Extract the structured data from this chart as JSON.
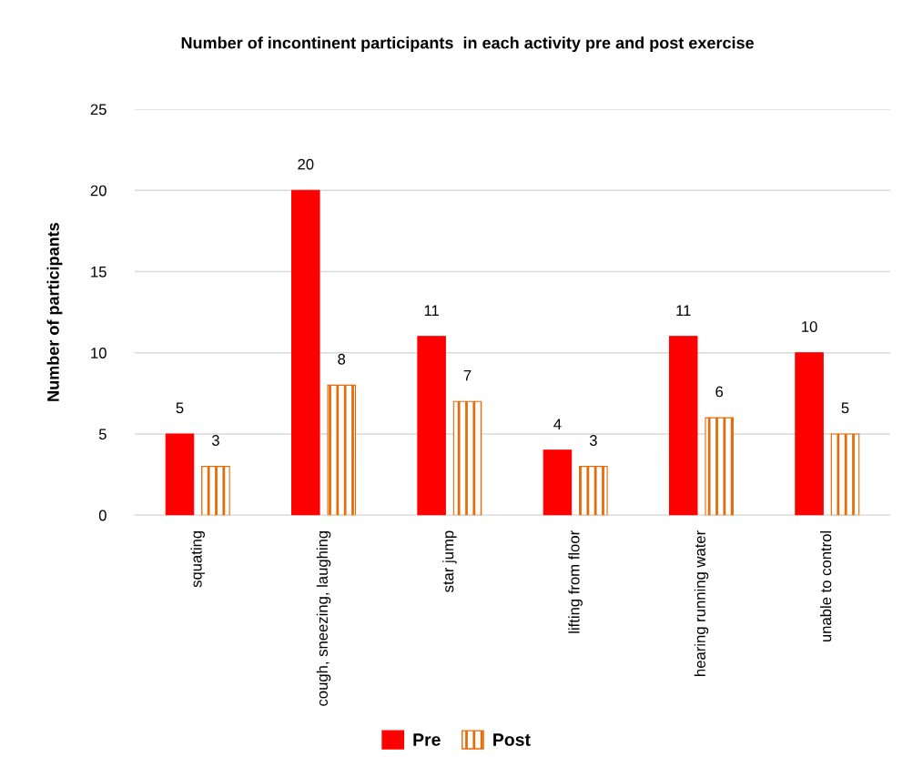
{
  "chart_data": {
    "type": "bar",
    "title": "Number of incontinent participants  in each activity pre and post exercise",
    "ylabel": "Number of participants",
    "categories": [
      "squating",
      "cough, sneezing, laughing",
      "star jump",
      "lifting from floor",
      "hearing running water",
      "unable to control"
    ],
    "series": [
      {
        "name": "Pre",
        "color": "#ff0000",
        "values": [
          5,
          20,
          11,
          4,
          11,
          10
        ]
      },
      {
        "name": "Post",
        "color": "#e46c0a",
        "values": [
          3,
          8,
          7,
          3,
          6,
          5
        ]
      }
    ],
    "ylim": [
      0,
      25
    ],
    "yticks": [
      0,
      5,
      10,
      15,
      20,
      25
    ],
    "grid": "y",
    "legend": "bottom",
    "data_labels": true
  }
}
